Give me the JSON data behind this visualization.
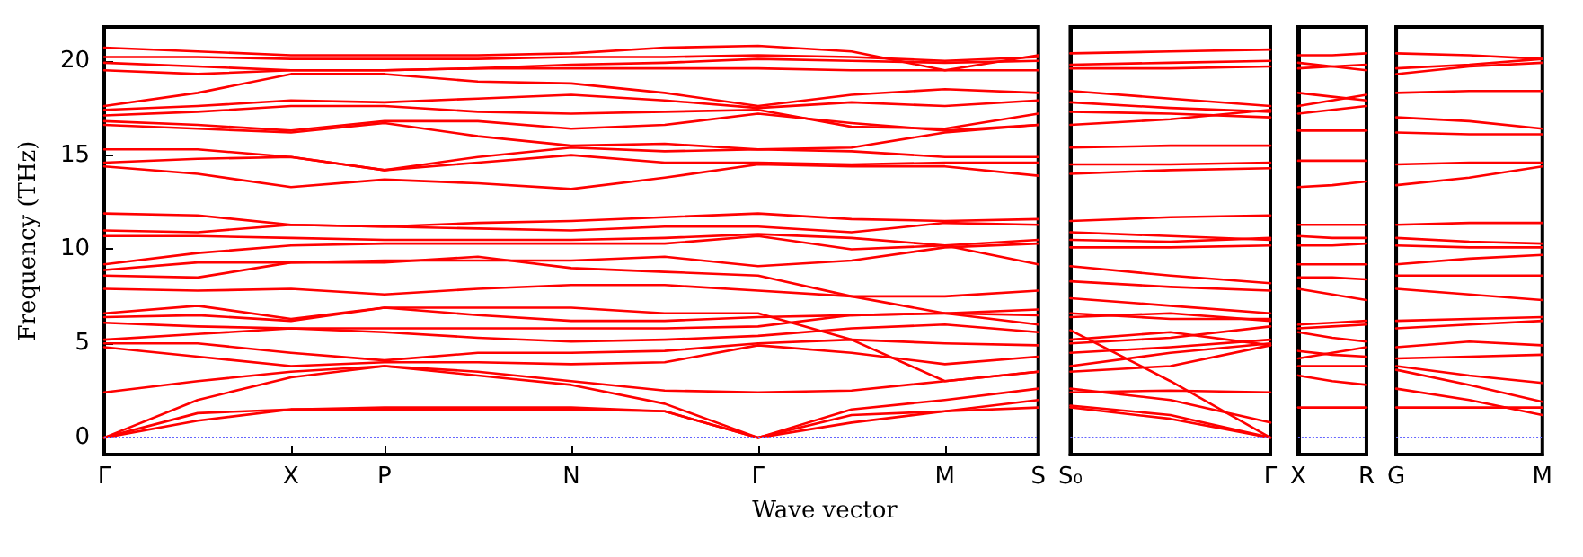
{
  "chart_data": [
    {
      "type": "line",
      "ylabel": "Frequency (THz)",
      "xlabel": "Wave vector",
      "marker": "none",
      "grid": false,
      "categories": [
        "Γ",
        null,
        "X",
        "P",
        null,
        "N",
        null,
        "Γ",
        null,
        "M",
        "S"
      ],
      "ylim": [
        -0.9,
        21.8
      ],
      "yticks": [
        0,
        5,
        10,
        15,
        20
      ],
      "ref_lines": [
        {
          "axis": "y",
          "value": 0,
          "color": "#6666ff",
          "line_style": "dotted"
        }
      ],
      "series": [
        {
          "color": "#ff0000",
          "values": [
            0,
            0.9,
            1.5,
            1.5,
            1.5,
            1.5,
            1.4,
            0,
            0.8,
            1.4,
            1.6
          ]
        },
        {
          "color": "#ff0000",
          "values": [
            0,
            1.3,
            1.5,
            1.6,
            1.6,
            1.6,
            1.4,
            0,
            1.2,
            1.4,
            2.0
          ]
        },
        {
          "color": "#ff0000",
          "values": [
            0,
            2.0,
            3.2,
            3.8,
            3.3,
            2.8,
            1.8,
            0,
            1.5,
            2.0,
            2.6
          ]
        },
        {
          "color": "#ff0000",
          "values": [
            2.4,
            3.0,
            3.5,
            3.8,
            3.5,
            3.0,
            2.5,
            2.4,
            2.5,
            3.0,
            3.5
          ]
        },
        {
          "color": "#ff0000",
          "values": [
            4.8,
            4.3,
            3.8,
            4.0,
            4.0,
            3.9,
            4.0,
            4.9,
            4.5,
            3.9,
            4.3
          ]
        },
        {
          "color": "#ff0000",
          "values": [
            5.0,
            5.0,
            4.5,
            4.1,
            4.5,
            4.5,
            4.6,
            5.0,
            5.2,
            5.0,
            4.9
          ]
        },
        {
          "color": "#ff0000",
          "values": [
            5.2,
            5.5,
            5.8,
            5.6,
            5.3,
            5.1,
            5.2,
            5.4,
            5.8,
            6.0,
            5.6
          ]
        },
        {
          "color": "#ff0000",
          "values": [
            6.1,
            5.9,
            5.8,
            5.8,
            5.8,
            5.8,
            5.8,
            5.9,
            6.5,
            6.6,
            6.5
          ]
        },
        {
          "color": "#ff0000",
          "values": [
            6.4,
            6.5,
            6.2,
            6.9,
            6.5,
            6.2,
            6.2,
            6.4,
            6.5,
            6.6,
            6.8
          ]
        },
        {
          "color": "#ff0000",
          "values": [
            6.6,
            7.0,
            6.3,
            6.9,
            6.9,
            6.9,
            6.6,
            6.6,
            5.2,
            3.0,
            3.5
          ]
        },
        {
          "color": "#ff0000",
          "values": [
            7.9,
            7.8,
            7.9,
            7.6,
            7.9,
            8.1,
            8.1,
            7.8,
            7.5,
            6.6,
            6.0
          ]
        },
        {
          "color": "#ff0000",
          "values": [
            8.6,
            8.5,
            9.3,
            9.3,
            9.6,
            9.0,
            8.8,
            8.6,
            7.5,
            7.5,
            7.8
          ]
        },
        {
          "color": "#ff0000",
          "values": [
            8.9,
            9.3,
            9.3,
            9.4,
            9.4,
            9.4,
            9.6,
            9.1,
            9.4,
            10.1,
            10.3
          ]
        },
        {
          "color": "#ff0000",
          "values": [
            9.2,
            9.8,
            10.2,
            10.3,
            10.3,
            10.3,
            10.3,
            10.7,
            10.0,
            10.2,
            9.2
          ]
        },
        {
          "color": "#ff0000",
          "values": [
            10.7,
            10.7,
            10.6,
            10.5,
            10.5,
            10.5,
            10.6,
            10.8,
            10.6,
            10.2,
            10.5
          ]
        },
        {
          "color": "#ff0000",
          "values": [
            11.0,
            10.9,
            11.3,
            11.2,
            11.1,
            11.0,
            11.2,
            11.2,
            10.9,
            11.4,
            11.3
          ]
        },
        {
          "color": "#ff0000",
          "values": [
            11.9,
            11.8,
            11.3,
            11.2,
            11.4,
            11.5,
            11.7,
            11.9,
            11.6,
            11.5,
            11.6
          ]
        },
        {
          "color": "#ff0000",
          "values": [
            14.4,
            14.0,
            13.3,
            13.7,
            13.5,
            13.2,
            13.8,
            14.5,
            14.4,
            14.4,
            13.9
          ]
        },
        {
          "color": "#ff0000",
          "values": [
            14.6,
            14.8,
            14.9,
            14.2,
            14.6,
            15.0,
            14.6,
            14.6,
            14.5,
            14.6,
            14.6
          ]
        },
        {
          "color": "#ff0000",
          "values": [
            15.3,
            15.3,
            14.9,
            14.2,
            14.9,
            15.4,
            15.2,
            15.3,
            15.2,
            14.9,
            14.9
          ]
        },
        {
          "color": "#ff0000",
          "values": [
            16.6,
            16.4,
            16.2,
            16.7,
            16.0,
            15.5,
            15.6,
            15.3,
            15.4,
            16.2,
            16.6
          ]
        },
        {
          "color": "#ff0000",
          "values": [
            16.8,
            16.6,
            16.3,
            16.8,
            16.8,
            16.4,
            16.6,
            17.2,
            16.7,
            16.3,
            16.6
          ]
        },
        {
          "color": "#ff0000",
          "values": [
            17.1,
            17.3,
            17.6,
            17.6,
            17.3,
            17.2,
            17.3,
            17.4,
            16.5,
            16.4,
            17.2
          ]
        },
        {
          "color": "#ff0000",
          "values": [
            17.4,
            17.6,
            17.9,
            17.8,
            18.0,
            18.2,
            17.9,
            17.5,
            17.8,
            17.6,
            17.9
          ]
        },
        {
          "color": "#ff0000",
          "values": [
            17.6,
            18.3,
            19.3,
            19.3,
            18.9,
            18.8,
            18.3,
            17.6,
            18.2,
            18.5,
            18.3
          ]
        },
        {
          "color": "#ff0000",
          "values": [
            19.5,
            19.3,
            19.5,
            19.5,
            19.6,
            19.6,
            19.6,
            19.6,
            19.5,
            19.5,
            19.5
          ]
        },
        {
          "color": "#ff0000",
          "values": [
            19.9,
            19.7,
            19.5,
            19.5,
            19.6,
            19.8,
            19.9,
            20.1,
            20.0,
            19.9,
            20.0
          ]
        },
        {
          "color": "#ff0000",
          "values": [
            20.2,
            20.2,
            20.1,
            20.1,
            20.1,
            20.2,
            20.2,
            20.3,
            20.2,
            20.0,
            20.2
          ]
        },
        {
          "color": "#ff0000",
          "values": [
            20.7,
            20.5,
            20.3,
            20.3,
            20.3,
            20.4,
            20.7,
            20.8,
            20.5,
            19.5,
            20.3
          ]
        }
      ]
    },
    {
      "type": "line",
      "marker": "none",
      "grid": false,
      "tick_labels": "x",
      "categories": [
        "S₀",
        null,
        "Γ"
      ],
      "ylim": [
        -0.9,
        21.8
      ],
      "ref_lines": [
        {
          "axis": "y",
          "value": 0,
          "color": "#6666ff",
          "line_style": "dotted"
        }
      ],
      "series": [
        {
          "color": "#ff0000",
          "values": [
            1.6,
            1.0,
            0
          ]
        },
        {
          "color": "#ff0000",
          "values": [
            1.7,
            1.2,
            0
          ]
        },
        {
          "color": "#ff0000",
          "values": [
            5.7,
            3.0,
            0
          ]
        },
        {
          "color": "#ff0000",
          "values": [
            2.6,
            2.0,
            0.8
          ]
        },
        {
          "color": "#ff0000",
          "values": [
            2.4,
            2.5,
            2.4
          ]
        },
        {
          "color": "#ff0000",
          "values": [
            3.5,
            3.8,
            4.9
          ]
        },
        {
          "color": "#ff0000",
          "values": [
            3.8,
            4.5,
            5.0
          ]
        },
        {
          "color": "#ff0000",
          "values": [
            4.5,
            4.8,
            5.2
          ]
        },
        {
          "color": "#ff0000",
          "values": [
            5.0,
            5.3,
            5.9
          ]
        },
        {
          "color": "#ff0000",
          "values": [
            5.2,
            5.6,
            4.9
          ]
        },
        {
          "color": "#ff0000",
          "values": [
            6.4,
            6.6,
            6.2
          ]
        },
        {
          "color": "#ff0000",
          "values": [
            6.6,
            6.3,
            6.3
          ]
        },
        {
          "color": "#ff0000",
          "values": [
            7.4,
            7.0,
            6.6
          ]
        },
        {
          "color": "#ff0000",
          "values": [
            8.3,
            8.0,
            7.8
          ]
        },
        {
          "color": "#ff0000",
          "values": [
            9.1,
            8.6,
            8.2
          ]
        },
        {
          "color": "#ff0000",
          "values": [
            10.1,
            10.1,
            10.2
          ]
        },
        {
          "color": "#ff0000",
          "values": [
            10.5,
            10.4,
            10.6
          ]
        },
        {
          "color": "#ff0000",
          "values": [
            10.9,
            10.7,
            10.5
          ]
        },
        {
          "color": "#ff0000",
          "values": [
            11.5,
            11.7,
            11.8
          ]
        },
        {
          "color": "#ff0000",
          "values": [
            14.0,
            14.2,
            14.3
          ]
        },
        {
          "color": "#ff0000",
          "values": [
            14.5,
            14.5,
            14.6
          ]
        },
        {
          "color": "#ff0000",
          "values": [
            15.4,
            15.5,
            15.5
          ]
        },
        {
          "color": "#ff0000",
          "values": [
            16.6,
            16.9,
            17.4
          ]
        },
        {
          "color": "#ff0000",
          "values": [
            17.3,
            17.2,
            17.0
          ]
        },
        {
          "color": "#ff0000",
          "values": [
            17.8,
            17.5,
            17.3
          ]
        },
        {
          "color": "#ff0000",
          "values": [
            18.4,
            18.0,
            17.6
          ]
        },
        {
          "color": "#ff0000",
          "values": [
            19.6,
            19.6,
            19.7
          ]
        },
        {
          "color": "#ff0000",
          "values": [
            19.8,
            19.9,
            20.0
          ]
        },
        {
          "color": "#ff0000",
          "values": [
            20.4,
            20.5,
            20.6
          ]
        }
      ]
    },
    {
      "type": "line",
      "marker": "none",
      "grid": false,
      "tick_labels": "x",
      "categories": [
        "X",
        null,
        "R"
      ],
      "ylim": [
        -0.9,
        21.8
      ],
      "ref_lines": [
        {
          "axis": "y",
          "value": 0,
          "color": "#6666ff",
          "line_style": "dotted"
        }
      ],
      "series": [
        {
          "color": "#ff0000",
          "values": [
            1.6,
            1.6,
            1.6
          ]
        },
        {
          "color": "#ff0000",
          "values": [
            3.3,
            3.0,
            2.8
          ]
        },
        {
          "color": "#ff0000",
          "values": [
            3.8,
            3.8,
            3.8
          ]
        },
        {
          "color": "#ff0000",
          "values": [
            4.2,
            4.5,
            4.8
          ]
        },
        {
          "color": "#ff0000",
          "values": [
            4.6,
            4.4,
            4.3
          ]
        },
        {
          "color": "#ff0000",
          "values": [
            5.6,
            5.3,
            5.1
          ]
        },
        {
          "color": "#ff0000",
          "values": [
            5.8,
            5.9,
            6.0
          ]
        },
        {
          "color": "#ff0000",
          "values": [
            6.0,
            6.1,
            6.2
          ]
        },
        {
          "color": "#ff0000",
          "values": [
            7.9,
            7.6,
            7.3
          ]
        },
        {
          "color": "#ff0000",
          "values": [
            8.5,
            8.5,
            8.4
          ]
        },
        {
          "color": "#ff0000",
          "values": [
            9.2,
            9.2,
            9.2
          ]
        },
        {
          "color": "#ff0000",
          "values": [
            10.2,
            10.2,
            10.3
          ]
        },
        {
          "color": "#ff0000",
          "values": [
            10.7,
            10.6,
            10.6
          ]
        },
        {
          "color": "#ff0000",
          "values": [
            11.3,
            11.3,
            11.3
          ]
        },
        {
          "color": "#ff0000",
          "values": [
            13.3,
            13.4,
            13.6
          ]
        },
        {
          "color": "#ff0000",
          "values": [
            14.7,
            14.7,
            14.7
          ]
        },
        {
          "color": "#ff0000",
          "values": [
            16.3,
            16.3,
            16.3
          ]
        },
        {
          "color": "#ff0000",
          "values": [
            17.2,
            17.4,
            17.6
          ]
        },
        {
          "color": "#ff0000",
          "values": [
            17.6,
            17.9,
            18.2
          ]
        },
        {
          "color": "#ff0000",
          "values": [
            18.3,
            18.1,
            17.9
          ]
        },
        {
          "color": "#ff0000",
          "values": [
            19.6,
            19.7,
            19.8
          ]
        },
        {
          "color": "#ff0000",
          "values": [
            19.9,
            19.7,
            19.5
          ]
        },
        {
          "color": "#ff0000",
          "values": [
            20.3,
            20.3,
            20.4
          ]
        }
      ]
    },
    {
      "type": "line",
      "marker": "none",
      "grid": false,
      "tick_labels": "x",
      "categories": [
        "G",
        null,
        "M"
      ],
      "ylim": [
        -0.9,
        21.8
      ],
      "ref_lines": [
        {
          "axis": "y",
          "value": 0,
          "color": "#6666ff",
          "line_style": "dotted"
        }
      ],
      "series": [
        {
          "color": "#ff0000",
          "values": [
            1.6,
            1.6,
            1.6
          ]
        },
        {
          "color": "#ff0000",
          "values": [
            2.6,
            2.0,
            1.2
          ]
        },
        {
          "color": "#ff0000",
          "values": [
            3.6,
            2.8,
            1.9
          ]
        },
        {
          "color": "#ff0000",
          "values": [
            3.8,
            3.3,
            2.9
          ]
        },
        {
          "color": "#ff0000",
          "values": [
            4.2,
            4.3,
            4.4
          ]
        },
        {
          "color": "#ff0000",
          "values": [
            4.8,
            5.1,
            4.9
          ]
        },
        {
          "color": "#ff0000",
          "values": [
            5.8,
            6.0,
            6.2
          ]
        },
        {
          "color": "#ff0000",
          "values": [
            6.2,
            6.3,
            6.4
          ]
        },
        {
          "color": "#ff0000",
          "values": [
            7.9,
            7.6,
            7.3
          ]
        },
        {
          "color": "#ff0000",
          "values": [
            8.6,
            8.6,
            8.6
          ]
        },
        {
          "color": "#ff0000",
          "values": [
            9.2,
            9.5,
            9.7
          ]
        },
        {
          "color": "#ff0000",
          "values": [
            10.2,
            10.1,
            10.1
          ]
        },
        {
          "color": "#ff0000",
          "values": [
            10.6,
            10.4,
            10.3
          ]
        },
        {
          "color": "#ff0000",
          "values": [
            11.3,
            11.4,
            11.4
          ]
        },
        {
          "color": "#ff0000",
          "values": [
            13.4,
            13.8,
            14.4
          ]
        },
        {
          "color": "#ff0000",
          "values": [
            14.5,
            14.6,
            14.6
          ]
        },
        {
          "color": "#ff0000",
          "values": [
            16.2,
            16.1,
            16.1
          ]
        },
        {
          "color": "#ff0000",
          "values": [
            17.0,
            16.8,
            16.4
          ]
        },
        {
          "color": "#ff0000",
          "values": [
            18.3,
            18.4,
            18.4
          ]
        },
        {
          "color": "#ff0000",
          "values": [
            19.3,
            19.7,
            19.9
          ]
        },
        {
          "color": "#ff0000",
          "values": [
            19.6,
            19.8,
            20.1
          ]
        },
        {
          "color": "#ff0000",
          "values": [
            20.4,
            20.3,
            20.1
          ]
        }
      ]
    }
  ]
}
